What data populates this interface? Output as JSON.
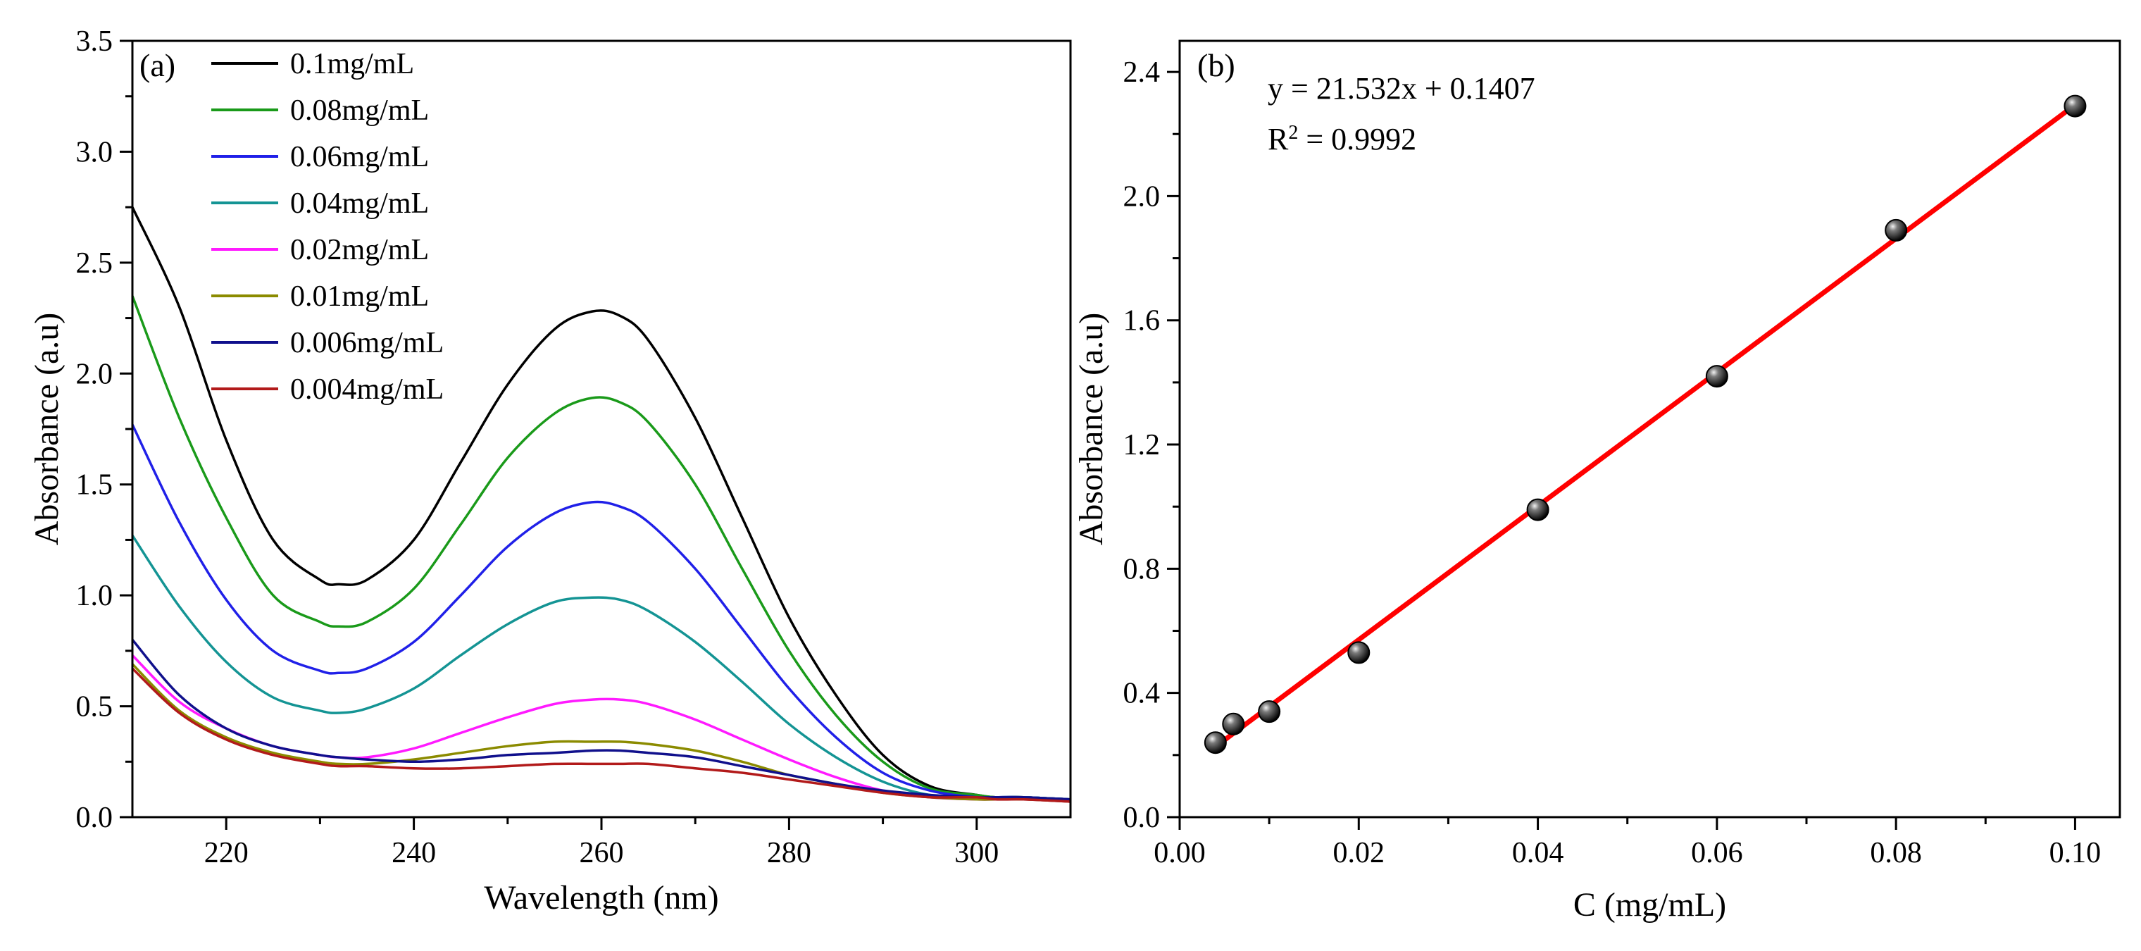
{
  "chart_data": [
    {
      "type": "line",
      "panel_label": "(a)",
      "xlabel": "Wavelength (nm)",
      "ylabel": "Absorbance (a.u)",
      "xlim": [
        210,
        310
      ],
      "ylim": [
        0,
        3.5
      ],
      "xticks": [
        220,
        240,
        260,
        280,
        300
      ],
      "xtick_labels": [
        "220",
        "240",
        "260",
        "280",
        "300"
      ],
      "yticks": [
        0,
        0.5,
        1.0,
        1.5,
        2.0,
        2.5,
        3.0,
        3.5
      ],
      "ytick_labels": [
        "0.0",
        "0.5",
        "1.0",
        "1.5",
        "2.0",
        "2.5",
        "3.0",
        "3.5"
      ],
      "legend_position": "top-left",
      "x": [
        210,
        215,
        220,
        225,
        230,
        232,
        235,
        240,
        245,
        250,
        255,
        259,
        262,
        265,
        270,
        275,
        280,
        285,
        290,
        295,
        300,
        302,
        305,
        310
      ],
      "series": [
        {
          "name": "0.1mg/mL",
          "color": "#000000",
          "values": [
            2.75,
            2.3,
            1.7,
            1.25,
            1.07,
            1.05,
            1.07,
            1.25,
            1.6,
            1.95,
            2.2,
            2.28,
            2.26,
            2.15,
            1.8,
            1.35,
            0.9,
            0.55,
            0.28,
            0.14,
            0.1,
            0.09,
            0.09,
            0.08
          ]
        },
        {
          "name": "0.08mg/mL",
          "color": "#1a9a1a",
          "values": [
            2.35,
            1.8,
            1.35,
            1.0,
            0.88,
            0.86,
            0.88,
            1.03,
            1.32,
            1.62,
            1.82,
            1.89,
            1.87,
            1.78,
            1.5,
            1.12,
            0.75,
            0.46,
            0.25,
            0.13,
            0.1,
            0.09,
            0.09,
            0.08
          ]
        },
        {
          "name": "0.06mg/mL",
          "color": "#2020e8",
          "values": [
            1.77,
            1.33,
            0.98,
            0.75,
            0.66,
            0.65,
            0.67,
            0.79,
            1.0,
            1.22,
            1.37,
            1.42,
            1.4,
            1.33,
            1.12,
            0.85,
            0.58,
            0.36,
            0.2,
            0.12,
            0.09,
            0.09,
            0.09,
            0.08
          ]
        },
        {
          "name": "0.04mg/mL",
          "color": "#149494",
          "values": [
            1.27,
            0.95,
            0.7,
            0.54,
            0.48,
            0.47,
            0.49,
            0.58,
            0.73,
            0.87,
            0.97,
            0.99,
            0.98,
            0.93,
            0.79,
            0.61,
            0.42,
            0.27,
            0.16,
            0.1,
            0.09,
            0.09,
            0.09,
            0.08
          ]
        },
        {
          "name": "0.02mg/mL",
          "color": "#ff1aff",
          "values": [
            0.73,
            0.52,
            0.4,
            0.32,
            0.28,
            0.27,
            0.27,
            0.31,
            0.38,
            0.45,
            0.51,
            0.53,
            0.53,
            0.51,
            0.44,
            0.35,
            0.26,
            0.18,
            0.12,
            0.09,
            0.08,
            0.08,
            0.08,
            0.07
          ]
        },
        {
          "name": "0.01mg/mL",
          "color": "#8b8b00",
          "values": [
            0.69,
            0.48,
            0.36,
            0.29,
            0.25,
            0.24,
            0.24,
            0.26,
            0.29,
            0.32,
            0.34,
            0.34,
            0.34,
            0.33,
            0.3,
            0.25,
            0.19,
            0.15,
            0.11,
            0.09,
            0.08,
            0.08,
            0.08,
            0.07
          ]
        },
        {
          "name": "0.006mg/mL",
          "color": "#10108c",
          "values": [
            0.8,
            0.55,
            0.4,
            0.32,
            0.28,
            0.27,
            0.26,
            0.25,
            0.26,
            0.28,
            0.29,
            0.3,
            0.3,
            0.29,
            0.27,
            0.23,
            0.19,
            0.15,
            0.12,
            0.1,
            0.09,
            0.09,
            0.09,
            0.08
          ]
        },
        {
          "name": "0.004mg/mL",
          "color": "#b21a1a",
          "values": [
            0.67,
            0.47,
            0.35,
            0.28,
            0.24,
            0.23,
            0.23,
            0.22,
            0.22,
            0.23,
            0.24,
            0.24,
            0.24,
            0.24,
            0.22,
            0.2,
            0.17,
            0.14,
            0.11,
            0.09,
            0.09,
            0.08,
            0.08,
            0.07
          ]
        }
      ]
    },
    {
      "type": "scatter",
      "panel_label": "(b)",
      "xlabel": "C (mg/mL)",
      "ylabel": "Absorbance (a.u)",
      "xlim": [
        0.0,
        0.105
      ],
      "ylim": [
        0.0,
        2.5
      ],
      "xticks": [
        0.0,
        0.02,
        0.04,
        0.06,
        0.08,
        0.1
      ],
      "xtick_labels": [
        "0.00",
        "0.02",
        "0.04",
        "0.06",
        "0.08",
        "0.10"
      ],
      "yticks": [
        0.0,
        0.4,
        0.8,
        1.2,
        1.6,
        2.0,
        2.4
      ],
      "ytick_labels": [
        "0.0",
        "0.4",
        "0.8",
        "1.2",
        "1.6",
        "2.0",
        "2.4"
      ],
      "points": {
        "x": [
          0.004,
          0.006,
          0.01,
          0.02,
          0.04,
          0.06,
          0.08,
          0.1
        ],
        "y": [
          0.24,
          0.3,
          0.34,
          0.53,
          0.99,
          1.42,
          1.89,
          2.29
        ]
      },
      "fit": {
        "slope": 21.532,
        "intercept": 0.1407,
        "x_range": [
          0.004,
          0.1
        ],
        "color": "#ff0000",
        "equation": "y = 21.532x + 0.1407",
        "r2_prefix": "R",
        "r2_sup": "2",
        "r2_value": " = 0.9992"
      }
    }
  ]
}
